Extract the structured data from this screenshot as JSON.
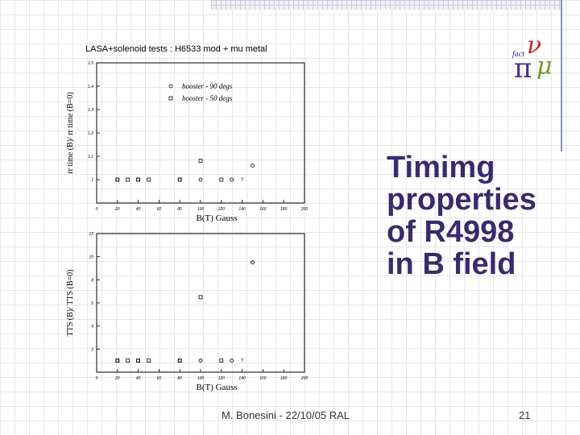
{
  "slide": {
    "title_lines": [
      "Timimg",
      "properties",
      "of R4998",
      "in B field"
    ],
    "footer_author": "M. Bonesini - 22/10/05 RAL",
    "page_number": "21"
  },
  "colors": {
    "title": "#3a2a6c",
    "logo_purple": "#4b2a8c",
    "logo_red": "#c0262c",
    "logo_green": "#6f9a2a"
  },
  "chart_data": [
    {
      "type": "scatter",
      "title": "LASA+solenoid  tests   : H6533 mod + mu metal",
      "xlabel": "B(T) Gauss",
      "ylabel": "rr time (B)/ rr time (B=0)",
      "xlim": [
        0,
        200
      ],
      "ylim": [
        0.9,
        1.5
      ],
      "xticks": [
        0,
        20,
        40,
        60,
        80,
        100,
        120,
        140,
        160,
        180,
        200
      ],
      "xtick_labels": [
        "0",
        "20",
        "40",
        "60",
        "80",
        "100",
        "120",
        "140",
        "160",
        "180",
        "200"
      ],
      "yticks": [
        1.0,
        1.1,
        1.2,
        1.3,
        1.4,
        1.5
      ],
      "ytick_labels": [
        "1",
        "1.1",
        "1.2",
        "1.3",
        "1.4",
        "1.5"
      ],
      "legend": {
        "placement": "top-left",
        "entries": [
          "booster - 90 degs",
          "booster - 50 degs"
        ]
      },
      "series": [
        {
          "name": "booster - 90 degs",
          "marker": "circle",
          "x": [
            20,
            40,
            80,
            100,
            130,
            150
          ],
          "y": [
            1.0,
            1.0,
            1.0,
            1.0,
            1.0,
            1.06
          ]
        },
        {
          "name": "booster - 50 degs",
          "marker": "square",
          "x": [
            20,
            30,
            40,
            50,
            80,
            100,
            120
          ],
          "y": [
            1.0,
            1.0,
            1.0,
            1.0,
            1.0,
            1.08,
            1.0
          ]
        }
      ],
      "annotations": [
        {
          "x": 140,
          "y": 1.0,
          "text": "?"
        }
      ]
    },
    {
      "type": "scatter",
      "xlabel": "B(T) Gauss",
      "ylabel": "TTS (B)/ TTS (B=0)",
      "xlim": [
        0,
        200
      ],
      "ylim": [
        0,
        12
      ],
      "xticks": [
        0,
        20,
        40,
        60,
        80,
        100,
        120,
        140,
        160,
        180,
        200
      ],
      "xtick_labels": [
        "0",
        "20",
        "40",
        "60",
        "80",
        "100",
        "120",
        "140",
        "160",
        "180",
        "200"
      ],
      "yticks": [
        2,
        4,
        6,
        8,
        10,
        12
      ],
      "ytick_labels": [
        "2",
        "4",
        "6",
        "8",
        "10",
        "12"
      ],
      "series": [
        {
          "name": "booster - 90 degs",
          "marker": "circle",
          "x": [
            20,
            40,
            80,
            100,
            130,
            150
          ],
          "y": [
            1.0,
            1.0,
            1.0,
            1.0,
            1.0,
            9.5
          ]
        },
        {
          "name": "booster - 50 degs",
          "marker": "square",
          "x": [
            20,
            30,
            40,
            50,
            80,
            100,
            120
          ],
          "y": [
            1.0,
            1.0,
            1.0,
            1.0,
            1.0,
            6.5,
            1.0
          ]
        }
      ],
      "annotations": [
        {
          "x": 140,
          "y": 1.0,
          "text": "?"
        }
      ]
    }
  ]
}
